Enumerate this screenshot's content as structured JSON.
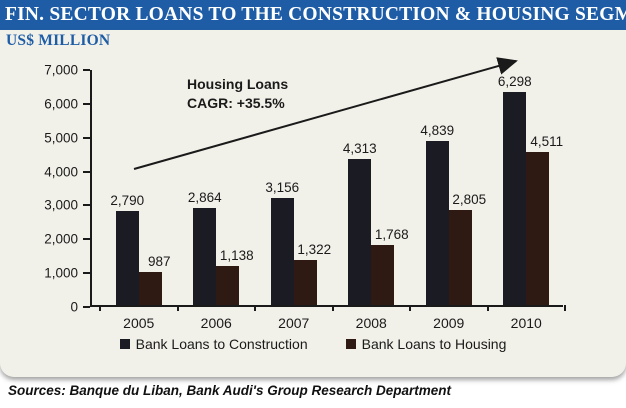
{
  "header": {
    "title": "FIN. SECTOR LOANS TO THE CONSTRUCTION & HOUSING SEGMENTS",
    "units_label": "US$ MILLION"
  },
  "annotation": {
    "line1": "Housing Loans",
    "line2": "CAGR: +35.5%"
  },
  "footer": {
    "sources_text": "Sources: Banque du Liban, Bank Audi's Group Research Department"
  },
  "colors": {
    "title_bar_bg": "#1e5da6",
    "title_text": "#ffffff",
    "card_bg": "#f2f1e9",
    "axis": "#1a1a1a",
    "construction_bar": "#1b1b24",
    "housing_bar": "#2f1a13",
    "accent_text": "#1e5da6"
  },
  "chart_data": {
    "type": "bar",
    "title": "Fin. Sector Loans to the Construction & Housing Segments",
    "subtitle": "US$ Million",
    "categories": [
      "2005",
      "2006",
      "2007",
      "2008",
      "2009",
      "2010"
    ],
    "series": [
      {
        "name": "Bank Loans to Construction",
        "color": "#1b1b24",
        "values": [
          2790,
          2864,
          3156,
          4313,
          4839,
          6298
        ]
      },
      {
        "name": "Bank Loans to Housing",
        "color": "#2f1a13",
        "values": [
          987,
          1138,
          1322,
          1768,
          2805,
          4511
        ]
      }
    ],
    "xlabel": "",
    "ylabel": "US$ Million",
    "ylim": [
      0,
      7000
    ],
    "yticks": [
      0,
      1000,
      2000,
      3000,
      4000,
      5000,
      6000,
      7000
    ],
    "grid": false,
    "legend_position": "bottom",
    "value_labels": true,
    "annotation": "Housing Loans CAGR: +35.5%"
  }
}
